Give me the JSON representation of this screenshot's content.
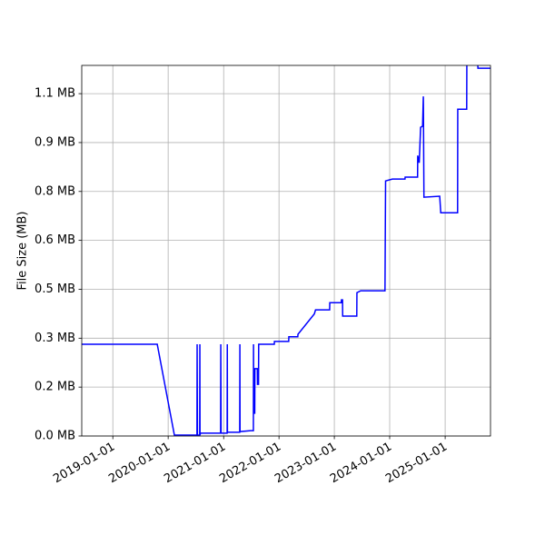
{
  "chart_data": {
    "type": "line",
    "y_label": "File Size (MB)",
    "x": [
      "2018-06-10",
      "2019-10-21",
      "2020-02-11",
      "2020-07-09",
      "2020-07-10",
      "2020-07-12",
      "2020-07-27",
      "2020-07-28",
      "2020-07-29",
      "2020-08-01",
      "2020-12-12",
      "2020-12-13",
      "2020-12-15",
      "2021-01-24",
      "2021-01-25",
      "2021-01-26",
      "2021-04-17",
      "2021-04-18",
      "2021-04-19",
      "2021-06-29",
      "2021-07-16",
      "2021-07-17",
      "2021-07-18",
      "2021-07-25",
      "2021-07-26",
      "2021-08-11",
      "2021-08-12",
      "2021-08-19",
      "2021-08-20",
      "2021-12-01",
      "2021-12-02",
      "2022-03-06",
      "2022-03-07",
      "2022-05-05",
      "2022-05-06",
      "2022-08-22",
      "2022-08-30",
      "2022-12-01",
      "2022-12-02",
      "2023-02-16",
      "2023-02-17",
      "2023-02-24",
      "2023-02-25",
      "2023-05-29",
      "2023-05-30",
      "2023-06-24",
      "2023-12-01",
      "2023-12-05",
      "2024-01-19",
      "2024-04-11",
      "2024-04-12",
      "2024-07-03",
      "2024-07-04",
      "2024-07-14",
      "2024-07-23",
      "2024-08-05",
      "2024-08-10",
      "2024-08-14",
      "2024-11-26",
      "2024-12-03",
      "2025-03-24",
      "2025-03-25",
      "2025-05-23",
      "2025-05-24",
      "2025-08-04",
      "2025-08-05",
      "2025-10-27"
    ],
    "series": [
      {
        "color": "#0000ff",
        "values": [
          0.293,
          0.293,
          0.003,
          0.003,
          0.293,
          0.003,
          0.003,
          0.293,
          0.003,
          0.009,
          0.009,
          0.293,
          0.009,
          0.009,
          0.293,
          0.012,
          0.012,
          0.293,
          0.014,
          0.017,
          0.017,
          0.293,
          0.073,
          0.073,
          0.215,
          0.215,
          0.165,
          0.165,
          0.293,
          0.293,
          0.302,
          0.302,
          0.317,
          0.317,
          0.325,
          0.39,
          0.403,
          0.403,
          0.426,
          0.426,
          0.435,
          0.435,
          0.383,
          0.383,
          0.458,
          0.464,
          0.464,
          0.815,
          0.821,
          0.821,
          0.827,
          0.827,
          0.896,
          0.873,
          0.986,
          0.99,
          1.085,
          0.763,
          0.766,
          0.713,
          0.713,
          1.044,
          1.044,
          1.19,
          1.19,
          1.175,
          1.175
        ]
      }
    ],
    "xlim": [
      "2018-06-10",
      "2025-10-27"
    ],
    "xticks": [
      "2019-01-01",
      "2020-01-01",
      "2021-01-01",
      "2022-01-01",
      "2023-01-01",
      "2024-01-01",
      "2025-01-01"
    ],
    "ylim": [
      0,
      1.184
    ],
    "yticks": [
      {
        "value": 0,
        "label": "0.0 MB"
      },
      {
        "value": 0.15625,
        "label": "0.2 MB"
      },
      {
        "value": 0.3125,
        "label": "0.3 MB"
      },
      {
        "value": 0.46875,
        "label": "0.5 MB"
      },
      {
        "value": 0.625,
        "label": "0.6 MB"
      },
      {
        "value": 0.78125,
        "label": "0.8 MB"
      },
      {
        "value": 0.9375,
        "label": "0.9 MB"
      },
      {
        "value": 1.09375,
        "label": "1.1 MB"
      }
    ],
    "grid": true
  }
}
